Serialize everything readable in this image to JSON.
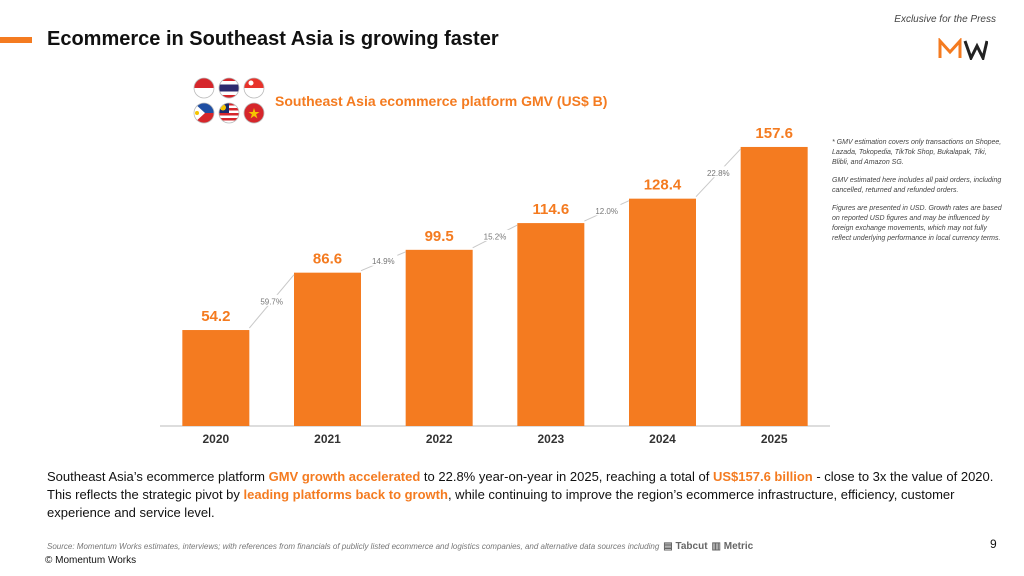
{
  "header": {
    "title": "Ecommerce in Southeast Asia is growing faster",
    "exclusive": "Exclusive for the Press",
    "logo_text": "MW"
  },
  "flags": [
    "indonesia-flag",
    "thailand-flag",
    "singapore-flag",
    "philippines-flag",
    "malaysia-flag",
    "vietnam-flag"
  ],
  "chart_data": {
    "type": "bar",
    "title": "Southeast Asia ecommerce platform GMV (US$ B)",
    "categories": [
      "2020",
      "2021",
      "2022",
      "2023",
      "2024",
      "2025"
    ],
    "values": [
      54.2,
      86.6,
      99.5,
      114.6,
      128.4,
      157.6
    ],
    "value_labels": [
      "54.2",
      "86.6",
      "99.5",
      "114.6",
      "128.4",
      "157.6"
    ],
    "growth_labels": [
      "59.7%",
      "14.9%",
      "15.2%",
      "12.0%",
      "22.8%"
    ],
    "ylim": [
      0,
      170
    ],
    "xlabel": "",
    "ylabel": "",
    "bar_color": "#f47b20"
  },
  "notes": [
    "* GMV estimation covers only transactions on Shopee, Lazada, Tokopedia, TikTok Shop, Bukalapak, Tiki, Blibli, and Amazon SG.",
    "GMV estimated here includes all paid orders, including cancelled, returned and refunded orders.",
    "Figures are presented in USD. Growth rates are based on reported USD figures and may be influenced by foreign exchange movements, which may not fully reflect underlying performance in local currency terms."
  ],
  "body": {
    "t1": "Southeast Asia’s ecommerce platform ",
    "h1": "GMV growth accelerated",
    "t2": " to 22.8% year-on-year in 2025, reaching a total of ",
    "h2": "US$157.6 billion",
    "t3": "  - close to 3x the value of 2020.  This reflects the strategic pivot by ",
    "h3": "leading platforms back to growth",
    "t4": ", while continuing to improve the region’s ecommerce infrastructure, efficiency, customer experience and service level."
  },
  "footer": {
    "source": "Source: Momentum Works estimates, interviews; with references from financials of publicly listed ecommerce and logistics companies,  and alternative data sources including",
    "source_logo_1": "Tabcut",
    "source_logo_2": "Metric",
    "page_number": "9",
    "copyright": "© Momentum Works"
  },
  "colors": {
    "accent": "#f47b20"
  }
}
